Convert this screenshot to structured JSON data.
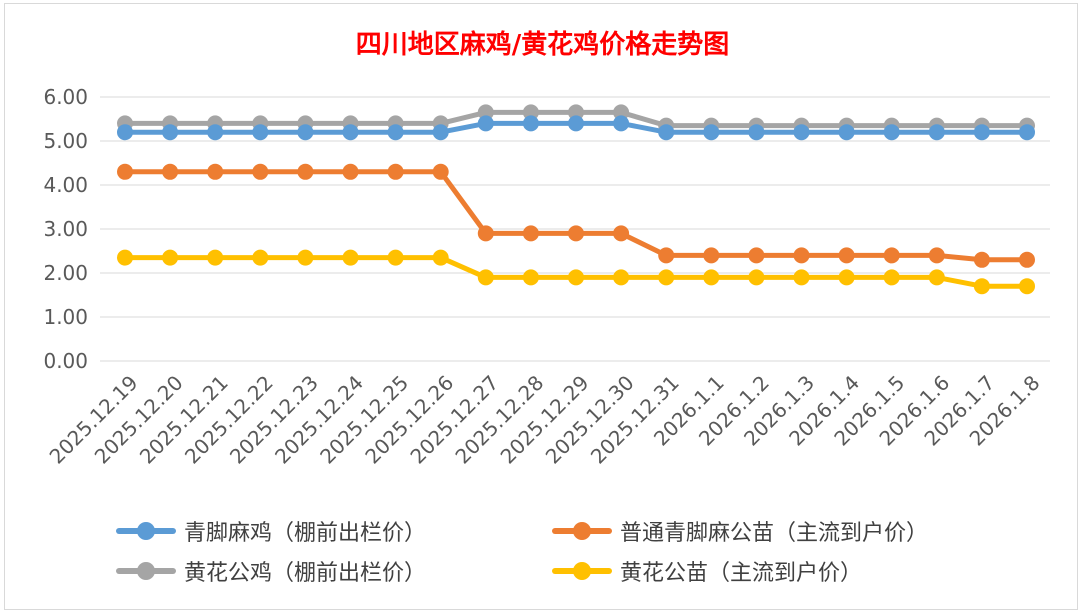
{
  "chart_data": {
    "type": "line",
    "title": "四川地区麻鸡/黄花鸡价格走势图",
    "xlabel": "",
    "ylabel": "",
    "ylim": [
      0,
      6
    ],
    "yticks": [
      "0.00",
      "1.00",
      "2.00",
      "3.00",
      "4.00",
      "5.00",
      "6.00"
    ],
    "grid": true,
    "legend_position": "bottom",
    "categories": [
      "2025.12.19",
      "2025.12.20",
      "2025.12.21",
      "2025.12.22",
      "2025.12.23",
      "2025.12.24",
      "2025.12.25",
      "2025.12.26",
      "2025.12.27",
      "2025.12.28",
      "2025.12.29",
      "2025.12.30",
      "2025.12.31",
      "2026.1.1",
      "2026.1.2",
      "2026.1.3",
      "2026.1.4",
      "2026.1.5",
      "2026.1.6",
      "2026.1.7",
      "2026.1.8"
    ],
    "series": [
      {
        "name": "青脚麻鸡（棚前出栏价）",
        "color": "#5b9bd5",
        "values": [
          5.2,
          5.2,
          5.2,
          5.2,
          5.2,
          5.2,
          5.2,
          5.2,
          5.4,
          5.4,
          5.4,
          5.4,
          5.2,
          5.2,
          5.2,
          5.2,
          5.2,
          5.2,
          5.2,
          5.2,
          5.2
        ]
      },
      {
        "name": "普通青脚麻公苗（主流到户价）",
        "color": "#ed7d31",
        "values": [
          4.3,
          4.3,
          4.3,
          4.3,
          4.3,
          4.3,
          4.3,
          4.3,
          2.9,
          2.9,
          2.9,
          2.9,
          2.4,
          2.4,
          2.4,
          2.4,
          2.4,
          2.4,
          2.4,
          2.3,
          2.3
        ]
      },
      {
        "name": "黄花公鸡（棚前出栏价）",
        "color": "#a5a5a5",
        "values": [
          5.4,
          5.4,
          5.4,
          5.4,
          5.4,
          5.4,
          5.4,
          5.4,
          5.65,
          5.65,
          5.65,
          5.65,
          5.35,
          5.35,
          5.35,
          5.35,
          5.35,
          5.35,
          5.35,
          5.35,
          5.35
        ]
      },
      {
        "name": "黄花公苗（主流到户价）",
        "color": "#ffc000",
        "values": [
          2.35,
          2.35,
          2.35,
          2.35,
          2.35,
          2.35,
          2.35,
          2.35,
          1.9,
          1.9,
          1.9,
          1.9,
          1.9,
          1.9,
          1.9,
          1.9,
          1.9,
          1.9,
          1.9,
          1.7,
          1.7
        ]
      }
    ]
  },
  "legend_order": [
    0,
    1,
    2,
    3
  ]
}
